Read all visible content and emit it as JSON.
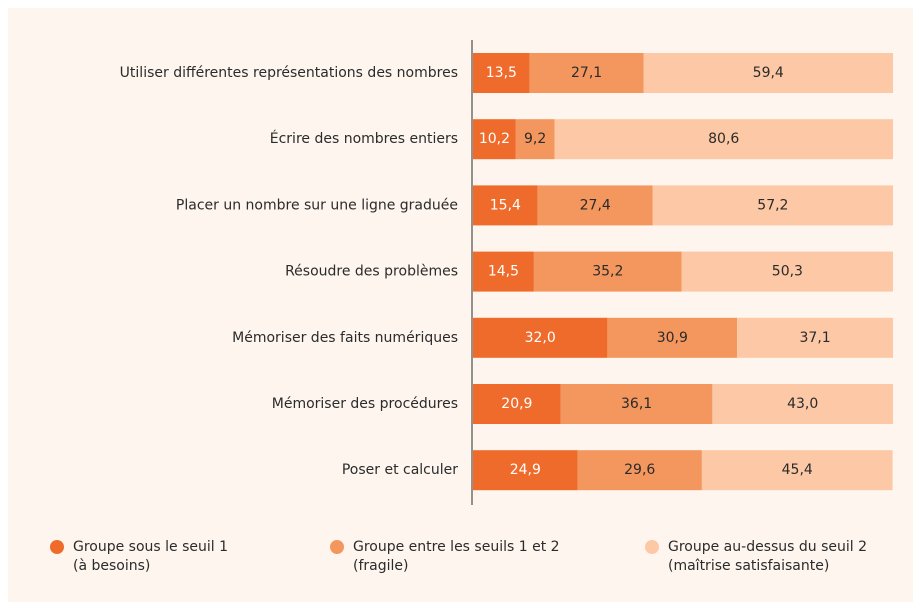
{
  "chart_data": {
    "type": "bar",
    "orientation": "horizontal",
    "stacked": true,
    "categories": [
      "Utiliser différentes représentations des nombres",
      "Écrire des nombres entiers",
      "Placer un nombre sur une ligne graduée",
      "Résoudre des problèmes",
      "Mémoriser des faits numériques",
      "Mémoriser des procédures",
      "Poser et calculer"
    ],
    "xlim": [
      0,
      100
    ],
    "series": [
      {
        "name": "Groupe sous le seuil 1 (à besoins)",
        "color": "#ef6b2b",
        "label_color": "#ffffff",
        "values": [
          13.5,
          10.2,
          15.4,
          14.5,
          32.0,
          20.9,
          24.9
        ],
        "value_labels": [
          "13,5",
          "10,2",
          "15,4",
          "14,5",
          "32,0",
          "20,9",
          "24,9"
        ]
      },
      {
        "name": "Groupe entre les seuils 1 et 2 (fragile)",
        "color": "#f4975e",
        "label_color": "#2b2b2b",
        "values": [
          27.1,
          9.2,
          27.4,
          35.2,
          30.9,
          36.1,
          29.6
        ],
        "value_labels": [
          "27,1",
          "9,2",
          "27,4",
          "35,2",
          "30,9",
          "36,1",
          "29,6"
        ]
      },
      {
        "name": "Groupe au-dessus du seuil 2 (maîtrise satisfaisante)",
        "color": "#fcc8a5",
        "label_color": "#2b2b2b",
        "values": [
          59.4,
          80.6,
          57.2,
          50.3,
          37.1,
          43.0,
          45.4
        ],
        "value_labels": [
          "59,4",
          "80,6",
          "57,2",
          "50,3",
          "37,1",
          "43,0",
          "45,4"
        ]
      }
    ],
    "legend": "bottom"
  }
}
